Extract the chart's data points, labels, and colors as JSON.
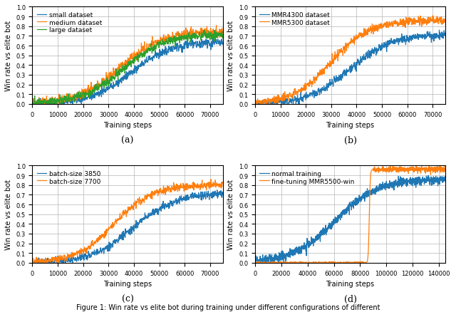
{
  "subplots": [
    {
      "label": "(a)",
      "xlabel": "Training steps",
      "ylabel": "Win rate vs elite bot",
      "xlim": [
        0,
        75000
      ],
      "ylim": [
        0.0,
        1.0
      ],
      "xticks": [
        0,
        10000,
        20000,
        30000,
        40000,
        50000,
        60000,
        70000
      ],
      "yticks": [
        0.0,
        0.1,
        0.2,
        0.3,
        0.4,
        0.5,
        0.6,
        0.7,
        0.8,
        0.9,
        1.0
      ],
      "series": [
        {
          "label": "small dataset",
          "color": "#1f77b4"
        },
        {
          "label": "medium dataset",
          "color": "#ff7f0e"
        },
        {
          "label": "large dataset",
          "color": "#2ca02c"
        }
      ],
      "n_pts": 750,
      "xmax": 75000
    },
    {
      "label": "(b)",
      "xlabel": "Training steps",
      "ylabel": "Win rate vs elite bot",
      "xlim": [
        0,
        75000
      ],
      "ylim": [
        0.0,
        1.0
      ],
      "xticks": [
        0,
        10000,
        20000,
        30000,
        40000,
        50000,
        60000,
        70000
      ],
      "yticks": [
        0.0,
        0.1,
        0.2,
        0.3,
        0.4,
        0.5,
        0.6,
        0.7,
        0.8,
        0.9,
        1.0
      ],
      "series": [
        {
          "label": "MMR4300 dataset",
          "color": "#1f77b4"
        },
        {
          "label": "MMR5300 dataset",
          "color": "#ff7f0e"
        }
      ],
      "n_pts": 750,
      "xmax": 75000
    },
    {
      "label": "(c)",
      "xlabel": "Training steps",
      "ylabel": "Win rate vs elite bot",
      "xlim": [
        0,
        75000
      ],
      "ylim": [
        0.0,
        1.0
      ],
      "xticks": [
        0,
        10000,
        20000,
        30000,
        40000,
        50000,
        60000,
        70000
      ],
      "yticks": [
        0.0,
        0.1,
        0.2,
        0.3,
        0.4,
        0.5,
        0.6,
        0.7,
        0.8,
        0.9,
        1.0
      ],
      "series": [
        {
          "label": "batch-size 3850",
          "color": "#1f77b4"
        },
        {
          "label": "batch-size 7700",
          "color": "#ff7f0e"
        }
      ],
      "n_pts": 750,
      "xmax": 75000
    },
    {
      "label": "(d)",
      "xlabel": "Training steps",
      "ylabel": "Win rate vs elite bot",
      "xlim": [
        0,
        145000
      ],
      "ylim": [
        0.0,
        1.0
      ],
      "xticks": [
        0,
        20000,
        40000,
        60000,
        80000,
        100000,
        120000,
        140000
      ],
      "yticks": [
        0.0,
        0.1,
        0.2,
        0.3,
        0.4,
        0.5,
        0.6,
        0.7,
        0.8,
        0.9,
        1.0
      ],
      "series": [
        {
          "label": "normal training",
          "color": "#1f77b4"
        },
        {
          "label": "fine-tuning MMR5500-win",
          "color": "#ff7f0e"
        }
      ],
      "n_pts": 1400,
      "xmax": 145000
    }
  ],
  "caption": "Figure 1: Win rate vs elite bot during training under different configurations of different",
  "figure_bg": "#ffffff",
  "tick_fontsize": 6.0,
  "label_fontsize": 7.0,
  "legend_fontsize": 6.5,
  "sublabel_fontsize": 9.0,
  "linewidth": 0.9,
  "caption_fontsize": 7.0
}
